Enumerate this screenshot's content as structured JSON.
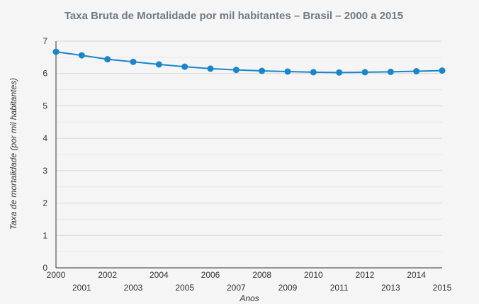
{
  "chart_data": {
    "type": "line",
    "title": "Taxa Bruta de Mortalidade por mil habitantes – Brasil – 2000 a 2015",
    "xlabel": "Anos",
    "ylabel": "Taxa de mortalidade (por mil habitantes)",
    "x": [
      2000,
      2001,
      2002,
      2003,
      2004,
      2005,
      2006,
      2007,
      2008,
      2009,
      2010,
      2011,
      2012,
      2013,
      2014,
      2015
    ],
    "x_tick_labels": [
      "2000",
      "2001",
      "2002",
      "2003",
      "2004",
      "2005",
      "2006",
      "2007",
      "2008",
      "2009",
      "2010",
      "2011",
      "2012",
      "2013",
      "2014",
      "2015"
    ],
    "y_ticks": [
      0,
      1,
      2,
      3,
      4,
      5,
      6,
      7
    ],
    "y_tick_labels": [
      "0",
      "1",
      "2",
      "3",
      "4",
      "5",
      "6",
      "7"
    ],
    "ylim": [
      0,
      7
    ],
    "xlim": [
      2000,
      2015
    ],
    "grid": true,
    "legend": "none",
    "series": [
      {
        "color": "#1a86c9",
        "values": [
          6.67,
          6.56,
          6.44,
          6.36,
          6.28,
          6.21,
          6.15,
          6.11,
          6.08,
          6.06,
          6.04,
          6.03,
          6.04,
          6.05,
          6.07,
          6.09
        ]
      }
    ],
    "colors": {
      "background": "#f5f5f5",
      "grid": "#d6d6d6",
      "axis": "#333333",
      "title": "#6f7b86"
    }
  }
}
